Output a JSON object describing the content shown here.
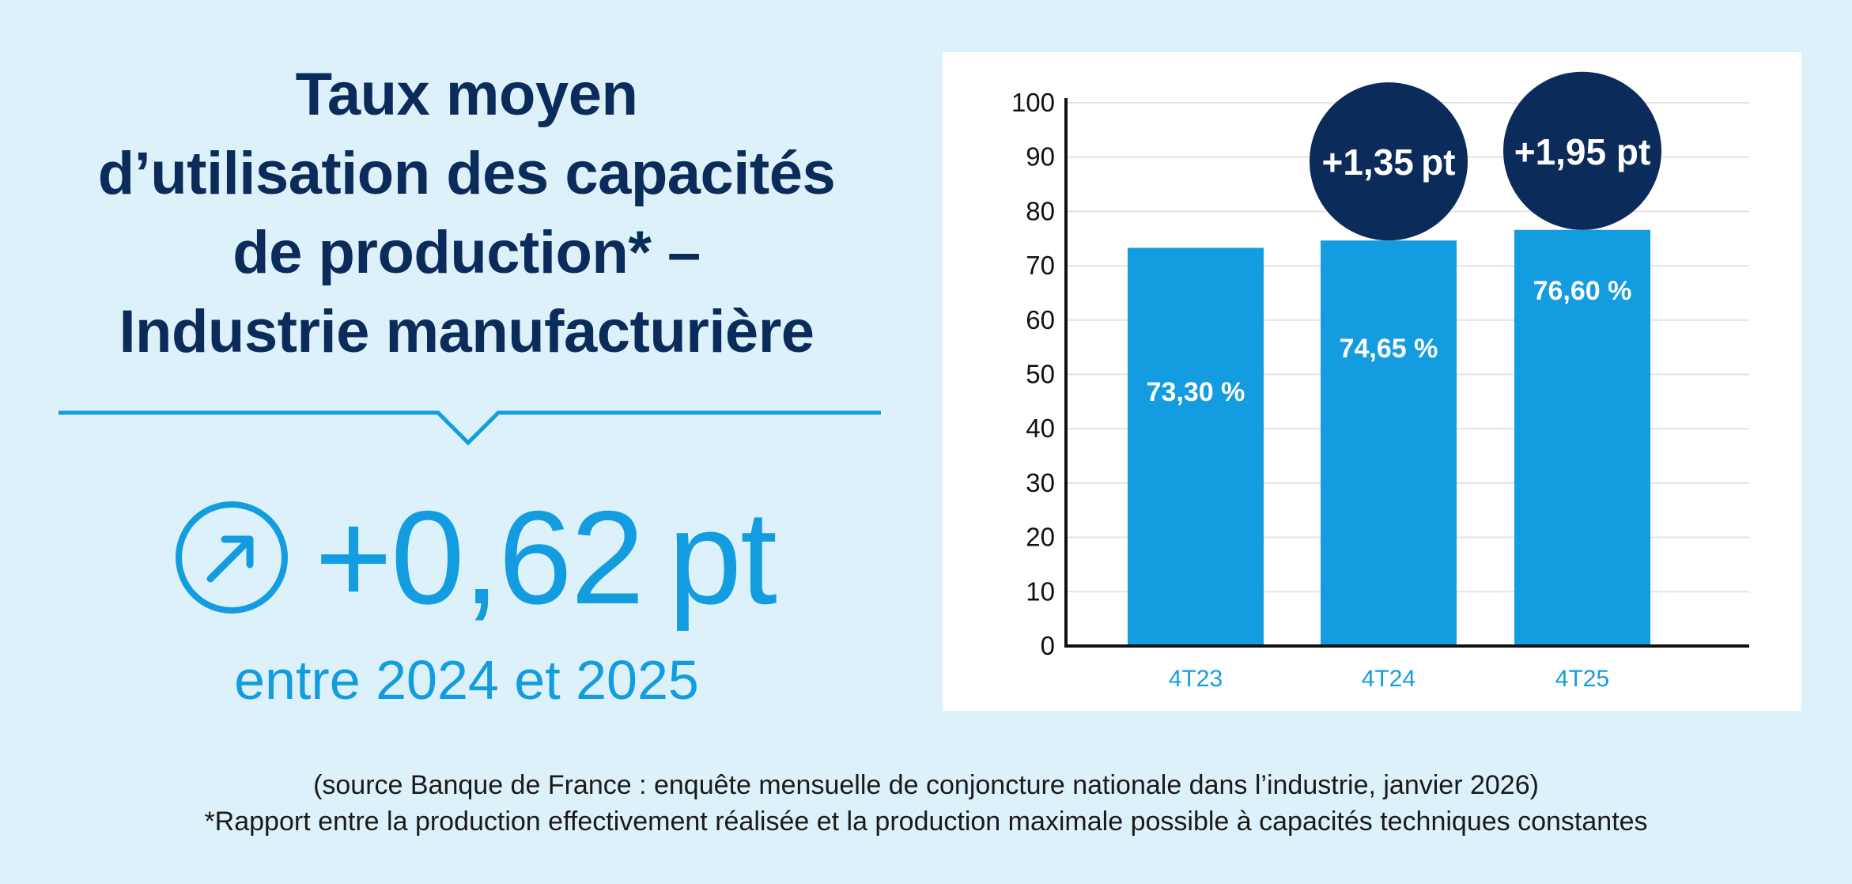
{
  "title_lines": [
    "Taux moyen",
    "d’utilisation des capacités",
    "de production* –",
    "Industrie manufacturière"
  ],
  "kpi": {
    "icon": "arrow-up-right-circle-icon",
    "value": "+0,62 pt",
    "period": "entre 2024 et 2025"
  },
  "colors": {
    "background": "#dcf1f9",
    "navy": "#0b2c5a",
    "accent": "#149ce0",
    "bar": "#149ce0",
    "circle": "#0b2c5a"
  },
  "chart_data": {
    "type": "bar",
    "categories": [
      "4T23",
      "4T24",
      "4T25"
    ],
    "values": [
      73.3,
      74.65,
      76.6
    ],
    "value_labels": [
      "73,30 %",
      "74,65 %",
      "76,60 %"
    ],
    "change_labels": [
      "",
      "+1,35 pt",
      "+1,95 pt"
    ],
    "ylim": [
      0,
      100
    ],
    "yticks": [
      "0",
      "10",
      "20",
      "30",
      "40",
      "50",
      "60",
      "70",
      "80",
      "90",
      "100"
    ],
    "grid": true,
    "title": "",
    "xlabel": "",
    "ylabel": ""
  },
  "footnotes": {
    "source": "(source Banque de France : enquête mensuelle de conjoncture nationale dans l’industrie, janvier 2026)",
    "definition": "*Rapport entre la production effectivement réalisée et la production maximale possible à capacités techniques constantes"
  }
}
